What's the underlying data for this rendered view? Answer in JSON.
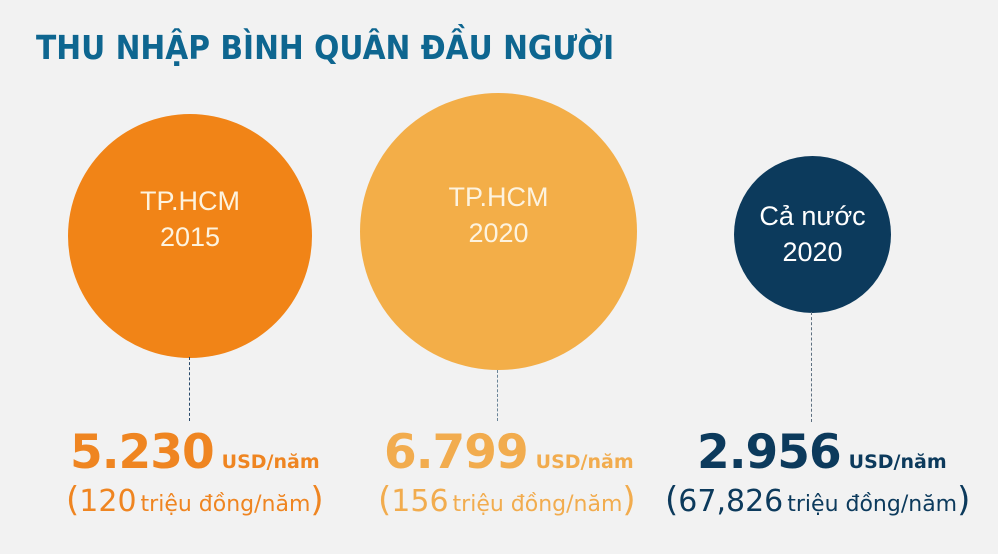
{
  "title": "THU NHẬP BÌNH QUÂN ĐẦU NGƯỜI",
  "colors": {
    "background": "#f2f2f2",
    "title": "#0e6690",
    "hcm_2015": "#f18417",
    "hcm_2020": "#f3ae48",
    "national_2020": "#0c3a5c"
  },
  "items": [
    {
      "label_line1": "TP.HCM",
      "label_line2": "2015",
      "value": "5.230",
      "unit": "USD/năm",
      "open_paren": "(",
      "vnd_value": "120",
      "vnd_unit": "triệu đồng/năm",
      "close_paren": ")"
    },
    {
      "label_line1": "TP.HCM",
      "label_line2": "2020",
      "value": "6.799",
      "unit": "USD/năm",
      "open_paren": "(",
      "vnd_value": "156",
      "vnd_unit": "triệu đồng/năm",
      "close_paren": ")"
    },
    {
      "label_line1": "Cả nước",
      "label_line2": "2020",
      "value": "2.956",
      "unit": "USD/năm",
      "open_paren": "(",
      "vnd_value": "67,826",
      "vnd_unit": "triệu đồng/năm",
      "close_paren": ")"
    }
  ],
  "chart_data": {
    "type": "bubble",
    "title": "THU NHẬP BÌNH QUÂN ĐẦU NGƯỜI",
    "categories": [
      "TP.HCM 2015",
      "TP.HCM 2020",
      "Cả nước 2020"
    ],
    "series": [
      {
        "name": "USD/năm",
        "values": [
          5230,
          6799,
          2956
        ]
      },
      {
        "name": "triệu đồng/năm",
        "values": [
          120,
          156,
          67.826
        ]
      }
    ],
    "colors": [
      "#f18417",
      "#f3ae48",
      "#0c3a5c"
    ],
    "xlabel": "",
    "ylabel": "",
    "grid": false,
    "legend": "none"
  }
}
